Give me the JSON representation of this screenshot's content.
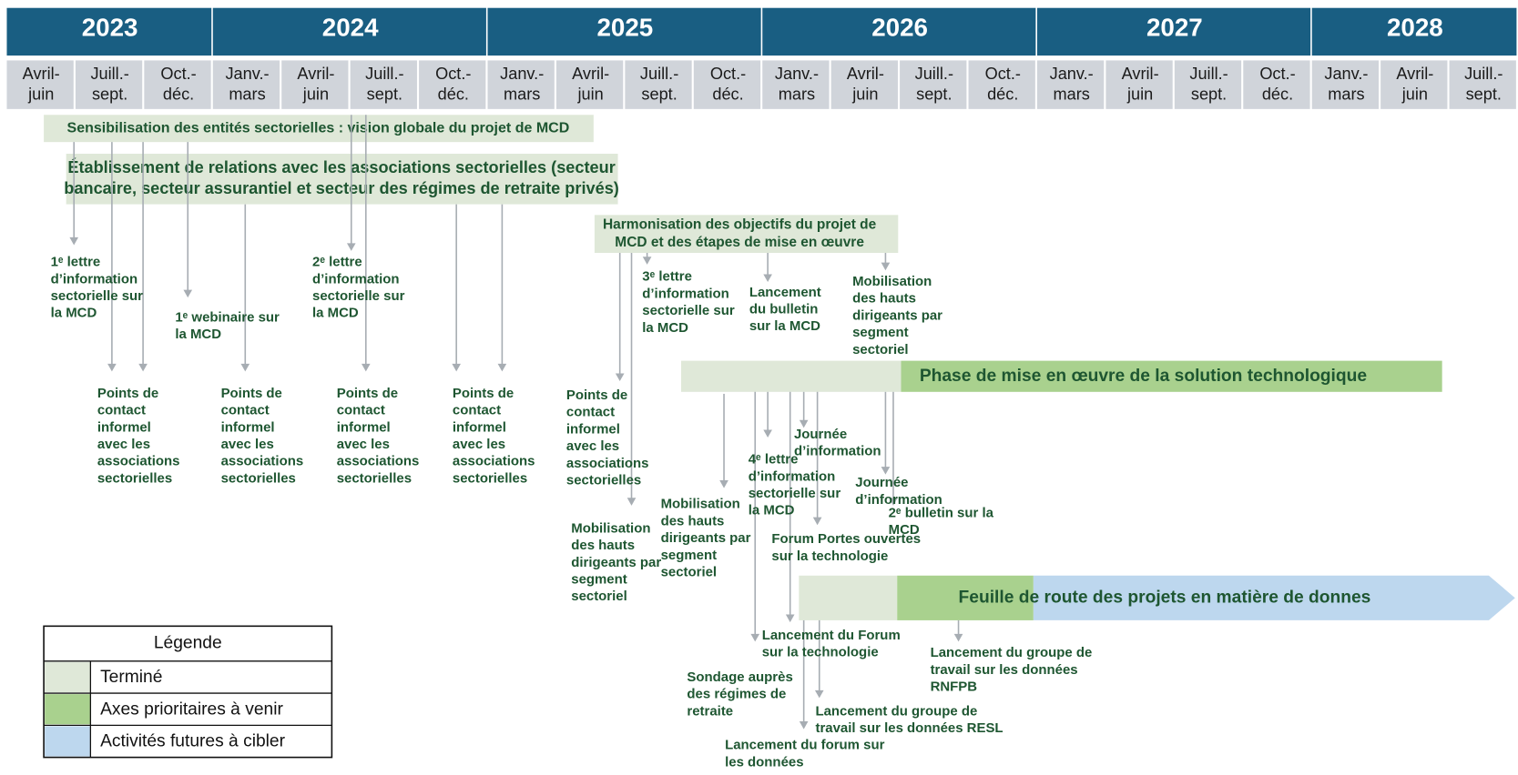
{
  "header": {
    "years": [
      "2023",
      "2024",
      "2025",
      "2026",
      "2027",
      "2028"
    ],
    "quarters": [
      [
        "Avril-",
        "juin"
      ],
      [
        "Juill.-",
        "sept."
      ],
      [
        "Oct.-",
        "déc."
      ],
      [
        "Janv.-",
        "mars"
      ],
      [
        "Avril-",
        "juin"
      ],
      [
        "Juill.-",
        "sept."
      ],
      [
        "Oct.-",
        "déc."
      ],
      [
        "Janv.-",
        "mars"
      ],
      [
        "Avril-",
        "juin"
      ],
      [
        "Juill.-",
        "sept."
      ],
      [
        "Oct.-",
        "déc."
      ],
      [
        "Janv.-",
        "mars"
      ],
      [
        "Avril-",
        "juin"
      ],
      [
        "Juill.-",
        "sept."
      ],
      [
        "Oct.-",
        "déc."
      ],
      [
        "Janv.-",
        "mars"
      ],
      [
        "Avril-",
        "juin"
      ],
      [
        "Juill.-",
        "sept."
      ],
      [
        "Oct.-",
        "déc."
      ],
      [
        "Janv.-",
        "mars"
      ],
      [
        "Avril-",
        "juin"
      ],
      [
        "Juill.-",
        "sept."
      ]
    ]
  },
  "bars": [
    {
      "lines": [
        "Sensibilisation des entités sectorielles : vision globale du projet de MCD"
      ]
    },
    {
      "lines": [
        "Établissement de relations avec les associations sectorielles (secteur",
        "bancaire, secteur assurantiel et secteur des régimes de retraite privés)"
      ]
    },
    {
      "lines": [
        "Harmonisation des objectifs du projet de",
        "MCD et des étapes de mise en œuvre"
      ]
    },
    {
      "lines": [
        "Phase de mise en œuvre de la solution technologique"
      ]
    },
    {
      "lines": [
        "Feuille de route des projets en matière de donnes"
      ]
    }
  ],
  "milestones": [
    {
      "lines": [
        "1ᵉ lettre",
        "d’information",
        "sectorielle sur",
        "la MCD"
      ]
    },
    {
      "lines": [
        "1ᵉ webinaire sur",
        "la MCD"
      ]
    },
    {
      "lines": [
        "2ᵉ lettre",
        "d’information",
        "sectorielle sur",
        "la MCD"
      ]
    },
    {
      "lines": [
        "Points de",
        "contact",
        "informel",
        "avec les",
        "associations",
        "sectorielles"
      ]
    },
    {
      "lines": [
        "Points de",
        "contact",
        "informel",
        "avec les",
        "associations",
        "sectorielles"
      ]
    },
    {
      "lines": [
        "Points de",
        "contact",
        "informel",
        "avec les",
        "associations",
        "sectorielles"
      ]
    },
    {
      "lines": [
        "Points de",
        "contact",
        "informel",
        "avec les",
        "associations",
        "sectorielles"
      ]
    },
    {
      "lines": [
        "Points de",
        "contact",
        "informel",
        "avec les",
        "associations",
        "sectorielles"
      ]
    },
    {
      "lines": [
        "Mobilisation",
        "des hauts",
        "dirigeants par",
        "segment",
        "sectoriel"
      ]
    },
    {
      "lines": [
        "3ᵉ lettre",
        "d’information",
        "sectorielle sur",
        "la MCD"
      ]
    },
    {
      "lines": [
        "Lancement",
        "du bulletin",
        "sur la MCD"
      ]
    },
    {
      "lines": [
        "Mobilisation",
        "des hauts",
        "dirigeants par",
        "segment",
        "sectoriel"
      ]
    },
    {
      "lines": [
        "Mobilisation",
        "des hauts",
        "dirigeants par",
        "segment",
        "sectoriel"
      ]
    },
    {
      "lines": [
        "4ᵉ lettre",
        "d’information",
        "sectorielle sur",
        "la MCD"
      ]
    },
    {
      "lines": [
        "Journée",
        "d’information"
      ]
    },
    {
      "lines": [
        "Journée",
        "d’information"
      ]
    },
    {
      "lines": [
        "2ᵉ bulletin sur la",
        "MCD"
      ]
    },
    {
      "lines": [
        "Forum Portes ouvertes",
        "sur la technologie"
      ]
    },
    {
      "lines": [
        "Lancement du Forum",
        "sur la technologie"
      ]
    },
    {
      "lines": [
        "Sondage auprès",
        "des régimes de",
        "retraite"
      ]
    },
    {
      "lines": [
        "Lancement du groupe de",
        "travail sur les données RESL"
      ]
    },
    {
      "lines": [
        "Lancement du forum sur",
        "les données"
      ]
    },
    {
      "lines": [
        "Lancement du groupe de",
        "travail sur les données",
        "RNFPB"
      ]
    }
  ],
  "legend": {
    "title": "Légende",
    "items": [
      "Terminé",
      "Axes prioritaires à venir",
      "Activités futures à cibler"
    ]
  }
}
